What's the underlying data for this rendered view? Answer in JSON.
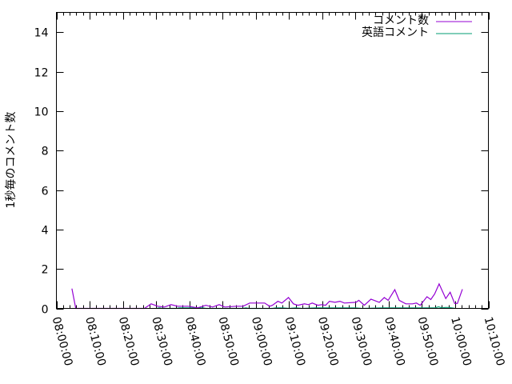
{
  "chart_data": {
    "type": "line",
    "title": "",
    "xlabel": "",
    "ylabel": "1秒毎のコメント数",
    "xlim": [
      "08:00:00",
      "10:10:00"
    ],
    "ylim": [
      0,
      15
    ],
    "x_ticks": [
      "08:00:00",
      "08:10:00",
      "08:20:00",
      "08:30:00",
      "08:40:00",
      "08:50:00",
      "09:00:00",
      "09:10:00",
      "09:20:00",
      "09:30:00",
      "09:40:00",
      "09:50:00",
      "10:00:00",
      "10:10:00"
    ],
    "y_ticks": [
      0,
      2,
      4,
      6,
      8,
      10,
      12,
      14
    ],
    "grid": false,
    "legend": "top-right",
    "series": [
      {
        "name": "コメント数",
        "color": "#9400d3",
        "x": [
          "08:04:40",
          "08:05:50",
          "08:26:30",
          "08:28:30",
          "08:30:30",
          "08:32:30",
          "08:34:30",
          "08:36:30",
          "08:39:40",
          "08:42:30",
          "08:45:00",
          "08:47:00",
          "08:49:00",
          "08:50:40",
          "08:54:10",
          "08:56:10",
          "08:58:10",
          "09:02:40",
          "09:04:10",
          "09:05:00",
          "09:06:40",
          "09:07:50",
          "09:09:50",
          "09:11:20",
          "09:12:40",
          "09:14:40",
          "09:15:50",
          "09:17:00",
          "09:18:40",
          "09:19:50",
          "09:21:00",
          "09:22:10",
          "09:23:50",
          "09:25:20",
          "09:26:40",
          "09:30:10",
          "09:31:00",
          "09:32:40",
          "09:34:40",
          "09:37:10",
          "09:38:40",
          "09:39:50",
          "09:41:50",
          "09:43:10",
          "09:45:10",
          "09:47:10",
          "09:48:20",
          "09:49:30",
          "09:51:30",
          "09:52:40",
          "09:53:50",
          "09:55:10",
          "09:57:10",
          "09:58:30",
          "09:59:50",
          "10:00:40",
          "10:02:10"
        ],
        "values": [
          1.0,
          0,
          0,
          0.23,
          0.11,
          0.07,
          0.19,
          0.11,
          0.11,
          0.03,
          0.16,
          0.07,
          0.19,
          0.07,
          0.11,
          0.11,
          0.27,
          0.27,
          0.11,
          0.16,
          0.36,
          0.27,
          0.55,
          0.23,
          0.16,
          0.23,
          0.19,
          0.27,
          0.16,
          0.19,
          0.16,
          0.36,
          0.31,
          0.36,
          0.27,
          0.31,
          0.41,
          0.16,
          0.47,
          0.31,
          0.55,
          0.41,
          0.95,
          0.41,
          0.23,
          0.23,
          0.27,
          0.16,
          0.59,
          0.45,
          0.73,
          1.24,
          0.5,
          0.82,
          0.25,
          0.25,
          0.97
        ]
      },
      {
        "name": "英語コメント",
        "color": "#009e73",
        "x": [
          "08:30:00",
          "08:31:00",
          "08:32:00",
          "08:36:00",
          "08:37:00",
          "08:44:00",
          "08:45:00",
          "08:56:00",
          "08:57:00",
          "08:58:00",
          "09:05:00",
          "09:06:00",
          "09:08:00",
          "09:10:00",
          "09:12:00",
          "09:14:00",
          "09:18:00",
          "09:30:00",
          "09:32:00",
          "09:38:00",
          "09:45:00",
          "09:50:00",
          "09:52:00",
          "09:54:00",
          "09:55:00",
          "09:56:00",
          "09:57:00",
          "09:58:00",
          "09:59:00",
          "10:00:00"
        ],
        "values": [
          0,
          0.03,
          0,
          0,
          0.03,
          0.03,
          0,
          0,
          0.03,
          0,
          0,
          0.03,
          0.03,
          0,
          0.03,
          0,
          0.03,
          0.03,
          0,
          0.03,
          0.03,
          0.03,
          0.03,
          0.03,
          0.08,
          0.03,
          0.05,
          0.05,
          0.03,
          0
        ]
      }
    ]
  }
}
